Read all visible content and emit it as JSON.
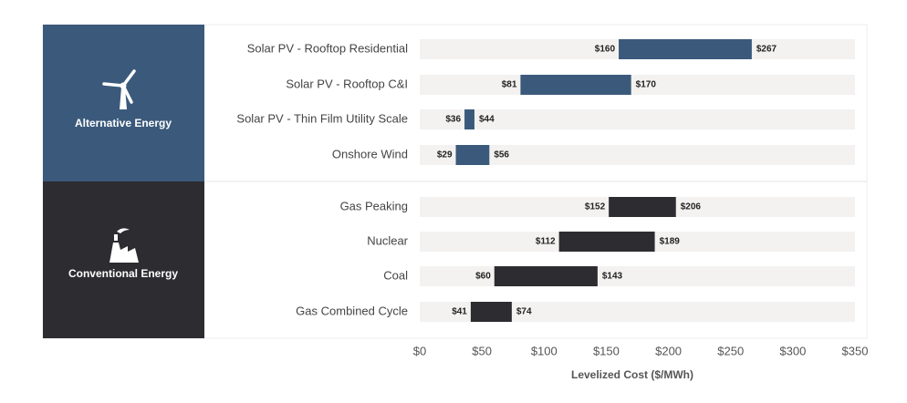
{
  "chart_data": {
    "type": "range-bar",
    "x_label": "Levelized Cost ($/MWh)",
    "xlim": [
      0,
      350
    ],
    "xticks": [
      {
        "value": 0,
        "label": "$0"
      },
      {
        "value": 50,
        "label": "$50"
      },
      {
        "value": 100,
        "label": "$100"
      },
      {
        "value": 150,
        "label": "$150"
      },
      {
        "value": 200,
        "label": "$200"
      },
      {
        "value": 250,
        "label": "$250"
      },
      {
        "value": 300,
        "label": "$300"
      },
      {
        "value": 350,
        "label": "$350"
      }
    ],
    "groups": [
      {
        "name": "Alternative Energy",
        "color": "#3b5a7b",
        "panel_color": "#3b5a7b",
        "categories": [
          "Solar PV - Rooftop Residential",
          "Solar PV - Rooftop C&I",
          "Solar PV - Thin Film Utility Scale",
          "Onshore Wind"
        ],
        "values": [
          [
            160,
            267
          ],
          [
            81,
            170
          ],
          [
            36,
            44
          ],
          [
            29,
            56
          ]
        ],
        "value_labels": [
          [
            "$160",
            "$267"
          ],
          [
            "$81",
            "$170"
          ],
          [
            "$36",
            "$44"
          ],
          [
            "$29",
            "$56"
          ]
        ]
      },
      {
        "name": "Conventional Energy",
        "color": "#2d2c31",
        "panel_color": "#2d2c31",
        "categories": [
          "Gas Peaking",
          "Nuclear",
          "Coal",
          "Gas Combined Cycle"
        ],
        "values": [
          [
            152,
            206
          ],
          [
            112,
            189
          ],
          [
            60,
            143
          ],
          [
            41,
            74
          ]
        ],
        "value_labels": [
          [
            "$152",
            "$206"
          ],
          [
            "$112",
            "$189"
          ],
          [
            "$60",
            "$143"
          ],
          [
            "$41",
            "$74"
          ]
        ]
      }
    ]
  }
}
